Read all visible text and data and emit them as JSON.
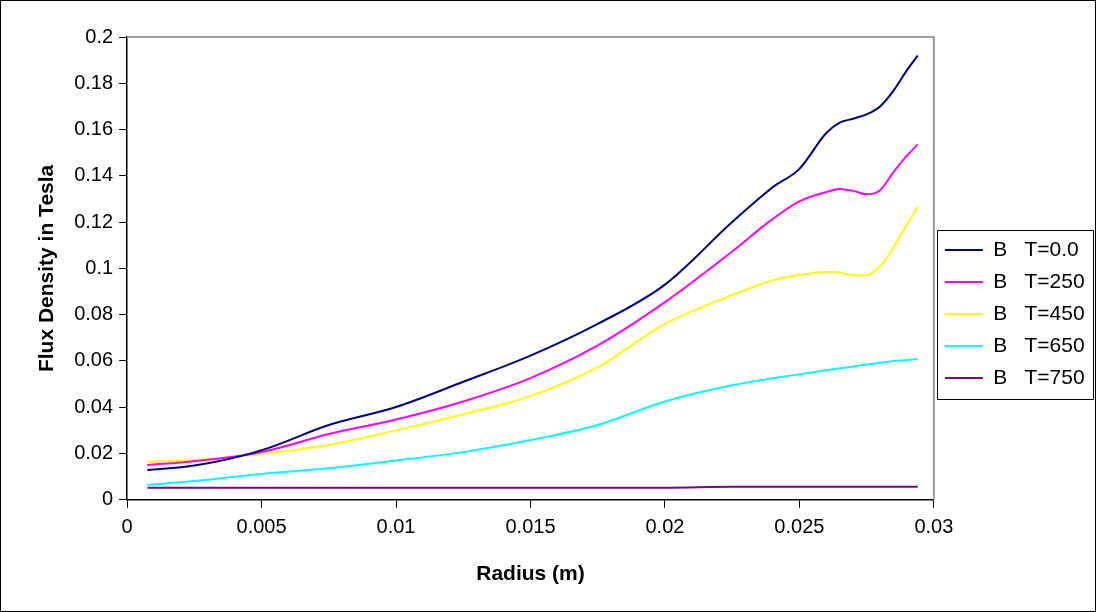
{
  "chart_data": {
    "type": "line",
    "xlabel": "Radius (m)",
    "ylabel": "Flux Density in Tesla",
    "x": [
      0.00075,
      0.0025,
      0.005,
      0.0075,
      0.01,
      0.0125,
      0.015,
      0.0175,
      0.02,
      0.0225,
      0.024,
      0.025,
      0.026,
      0.0265,
      0.027,
      0.0275,
      0.028,
      0.0285,
      0.029,
      0.0294
    ],
    "series": [
      {
        "name": "B   T=0.0",
        "color": "#000080",
        "values": [
          0.0128,
          0.0148,
          0.0214,
          0.0323,
          0.0401,
          0.051,
          0.0623,
          0.076,
          0.093,
          0.12,
          0.135,
          0.143,
          0.1585,
          0.163,
          0.1647,
          0.1666,
          0.17,
          0.1768,
          0.1857,
          0.192
        ]
      },
      {
        "name": "B   T=250",
        "color": "#ff00ff",
        "values": [
          0.015,
          0.0167,
          0.0206,
          0.0284,
          0.0347,
          0.0425,
          0.0526,
          0.0667,
          0.0854,
          0.1073,
          0.1213,
          0.129,
          0.133,
          0.1343,
          0.1335,
          0.132,
          0.1338,
          0.1416,
          0.1487,
          0.1536
        ]
      },
      {
        "name": "B   T=450",
        "color": "#ffff00",
        "values": [
          0.0164,
          0.0172,
          0.0199,
          0.0237,
          0.03,
          0.037,
          0.0448,
          0.0573,
          0.076,
          0.0885,
          0.0948,
          0.0971,
          0.0984,
          0.0982,
          0.097,
          0.097,
          0.101,
          0.1089,
          0.119,
          0.1266
        ]
      },
      {
        "name": "B   T=650",
        "color": "#00ffff",
        "values": [
          0.0064,
          0.0081,
          0.0112,
          0.0136,
          0.017,
          0.0206,
          0.0258,
          0.0323,
          0.0425,
          0.0495,
          0.0525,
          0.0542,
          0.056,
          0.0568,
          0.0576,
          0.0585,
          0.0592,
          0.06,
          0.0604,
          0.0609
        ]
      },
      {
        "name": "B   T=750",
        "color": "#800080",
        "values": [
          0.0052,
          0.0052,
          0.0052,
          0.0052,
          0.0052,
          0.0052,
          0.0052,
          0.0052,
          0.0052,
          0.0056,
          0.0056,
          0.0056,
          0.0056,
          0.0056,
          0.0056,
          0.0056,
          0.0056,
          0.0056,
          0.0056,
          0.0056
        ]
      }
    ],
    "xlim": [
      0,
      0.03
    ],
    "xticks": [
      0,
      0.005,
      0.01,
      0.015,
      0.02,
      0.025,
      0.03
    ],
    "ylim": [
      0,
      0.2
    ],
    "yticks": [
      0,
      0.02,
      0.04,
      0.06,
      0.08,
      0.1,
      0.12,
      0.14,
      0.16,
      0.18,
      0.2
    ],
    "grid": false,
    "legend": "right",
    "marker": "none",
    "line_style": "solid"
  }
}
